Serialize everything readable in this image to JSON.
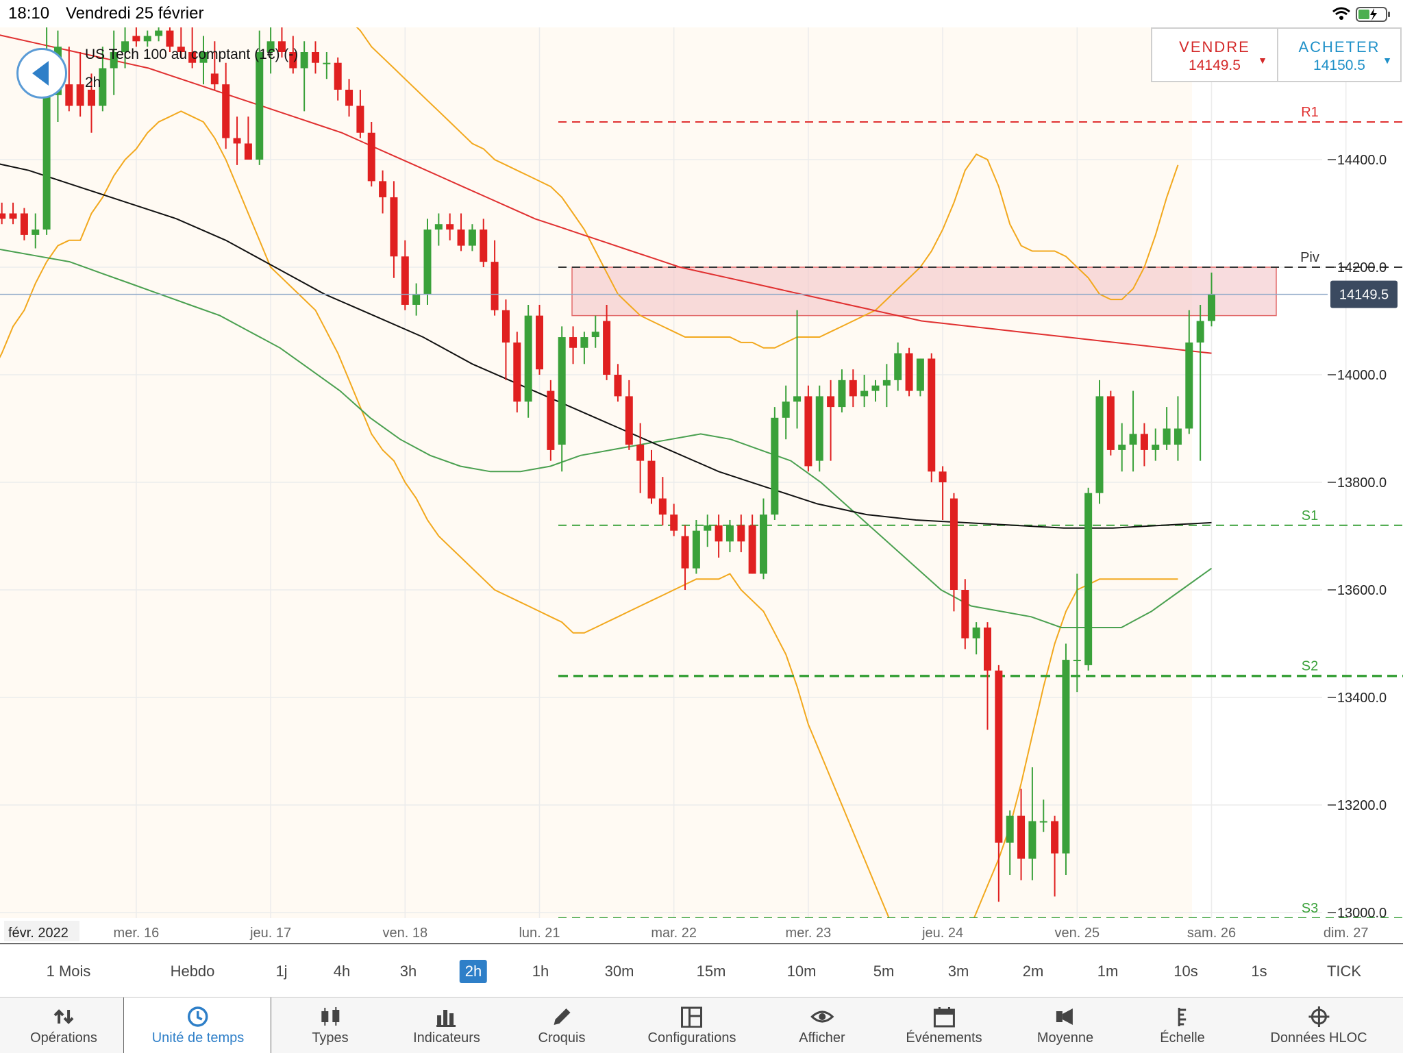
{
  "status_bar": {
    "time": "18:10",
    "date": "Vendredi 25 février"
  },
  "instrument": {
    "name": "US Tech 100 au comptant (1€) (-)",
    "timeframe": "2h"
  },
  "trade": {
    "sell_label": "VENDRE",
    "sell_price": "14149.5",
    "buy_label": "ACHETER",
    "buy_price": "14150.5"
  },
  "colors": {
    "up": "#3aa13a",
    "down": "#e02020",
    "accent": "#2e7fc8",
    "sell": "#d42a2a",
    "buy": "#1e90c8",
    "bollinger": "#f2a81d",
    "ma_red": "#e03030",
    "ma_green": "#4aa050",
    "ma_black": "#111111",
    "zone_fill": "#f4c4c8"
  },
  "chart_data": {
    "type": "candlestick",
    "instrument": "US Tech 100 au comptant (1€) (-)",
    "timeframe": "2h",
    "y_ticks": [
      "14400.0",
      "14200.0",
      "14000.0",
      "13800.0",
      "13600.0",
      "13400.0",
      "13200.0",
      "13000.0"
    ],
    "y_tick_values": [
      14400,
      14200,
      14000,
      13800,
      13600,
      13400,
      13200,
      13000
    ],
    "ylim": [
      12980,
      14650
    ],
    "last_price": "14149.5",
    "last_price_value": 14149.5,
    "date_labels": [
      "mer. 16",
      "jeu. 17",
      "ven. 18",
      "lun. 21",
      "mar. 22",
      "mer. 23",
      "jeu. 24",
      "ven. 25",
      "sam. 26",
      "dim. 27"
    ],
    "month_label": "févr. 2022",
    "levels": [
      {
        "name": "R1",
        "value": 14470,
        "color": "#e03030",
        "style": "dashed"
      },
      {
        "name": "Piv",
        "value": 14200,
        "color": "#333333",
        "style": "dashed"
      },
      {
        "name": "S1",
        "value": 13720,
        "color": "#3aa13a",
        "style": "dashed"
      },
      {
        "name": "S2",
        "value": 13440,
        "color": "#3aa13a",
        "style": "dashed-bold"
      },
      {
        "name": "S3",
        "value": 12990,
        "color": "#3aa13a",
        "style": "dashed"
      }
    ],
    "zone": {
      "from": 14110,
      "to": 14200
    },
    "x_axis": {
      "start_slot": 0,
      "slot_labels": [
        {
          "label": "mer. 16",
          "slot": 14
        },
        {
          "label": "jeu. 17",
          "slot": 26
        },
        {
          "label": "ven. 18",
          "slot": 38
        },
        {
          "label": "lun. 21",
          "slot": 50
        },
        {
          "label": "mar. 22",
          "slot": 62
        },
        {
          "label": "mer. 23",
          "slot": 74
        },
        {
          "label": "jeu. 24",
          "slot": 86
        },
        {
          "label": "ven. 25",
          "slot": 98
        },
        {
          "label": "sam. 26",
          "slot": 110
        },
        {
          "label": "dim. 27",
          "slot": 122
        }
      ]
    },
    "candles": [
      {
        "o": 14310,
        "h": 14320,
        "l": 14270,
        "c": 14280
      },
      {
        "o": 14300,
        "h": 14320,
        "l": 14280,
        "c": 14290
      },
      {
        "o": 14300,
        "h": 14320,
        "l": 14280,
        "c": 14290
      },
      {
        "o": 14300,
        "h": 14310,
        "l": 14250,
        "c": 14260
      },
      {
        "o": 14260,
        "h": 14300,
        "l": 14235,
        "c": 14270
      },
      {
        "o": 14270,
        "h": 14650,
        "l": 14260,
        "c": 14520
      },
      {
        "o": 14520,
        "h": 14640,
        "l": 14470,
        "c": 14610
      },
      {
        "o": 14540,
        "h": 14610,
        "l": 14490,
        "c": 14500
      },
      {
        "o": 14540,
        "h": 14600,
        "l": 14480,
        "c": 14500
      },
      {
        "o": 14530,
        "h": 14560,
        "l": 14450,
        "c": 14500
      },
      {
        "o": 14500,
        "h": 14610,
        "l": 14490,
        "c": 14570
      },
      {
        "o": 14570,
        "h": 14640,
        "l": 14520,
        "c": 14600
      },
      {
        "o": 14600,
        "h": 14650,
        "l": 14570,
        "c": 14620
      },
      {
        "o": 14630,
        "h": 14650,
        "l": 14610,
        "c": 14620
      },
      {
        "o": 14620,
        "h": 14640,
        "l": 14610,
        "c": 14630
      },
      {
        "o": 14630,
        "h": 14650,
        "l": 14620,
        "c": 14640
      },
      {
        "o": 14640,
        "h": 14650,
        "l": 14600,
        "c": 14610
      },
      {
        "o": 14610,
        "h": 14650,
        "l": 14590,
        "c": 14600
      },
      {
        "o": 14600,
        "h": 14650,
        "l": 14570,
        "c": 14580
      },
      {
        "o": 14580,
        "h": 14630,
        "l": 14540,
        "c": 14600
      },
      {
        "o": 14560,
        "h": 14620,
        "l": 14530,
        "c": 14540
      },
      {
        "o": 14540,
        "h": 14580,
        "l": 14420,
        "c": 14440
      },
      {
        "o": 14440,
        "h": 14480,
        "l": 14390,
        "c": 14430
      },
      {
        "o": 14430,
        "h": 14480,
        "l": 14400,
        "c": 14400
      },
      {
        "o": 14400,
        "h": 14640,
        "l": 14390,
        "c": 14600
      },
      {
        "o": 14600,
        "h": 14650,
        "l": 14560,
        "c": 14620
      },
      {
        "o": 14620,
        "h": 14650,
        "l": 14590,
        "c": 14600
      },
      {
        "o": 14600,
        "h": 14630,
        "l": 14560,
        "c": 14570
      },
      {
        "o": 14570,
        "h": 14620,
        "l": 14490,
        "c": 14600
      },
      {
        "o": 14600,
        "h": 14620,
        "l": 14560,
        "c": 14580
      },
      {
        "o": 14580,
        "h": 14600,
        "l": 14550,
        "c": 14580
      },
      {
        "o": 14580,
        "h": 14590,
        "l": 14510,
        "c": 14530
      },
      {
        "o": 14530,
        "h": 14550,
        "l": 14480,
        "c": 14500
      },
      {
        "o": 14500,
        "h": 14530,
        "l": 14440,
        "c": 14450
      },
      {
        "o": 14450,
        "h": 14470,
        "l": 14350,
        "c": 14360
      },
      {
        "o": 14360,
        "h": 14380,
        "l": 14300,
        "c": 14330
      },
      {
        "o": 14330,
        "h": 14360,
        "l": 14180,
        "c": 14220
      },
      {
        "o": 14220,
        "h": 14250,
        "l": 14120,
        "c": 14130
      },
      {
        "o": 14130,
        "h": 14170,
        "l": 14110,
        "c": 14150
      },
      {
        "o": 14150,
        "h": 14290,
        "l": 14130,
        "c": 14270
      },
      {
        "o": 14270,
        "h": 14300,
        "l": 14240,
        "c": 14280
      },
      {
        "o": 14280,
        "h": 14300,
        "l": 14250,
        "c": 14270
      },
      {
        "o": 14270,
        "h": 14300,
        "l": 14230,
        "c": 14240
      },
      {
        "o": 14240,
        "h": 14280,
        "l": 14230,
        "c": 14270
      },
      {
        "o": 14270,
        "h": 14290,
        "l": 14200,
        "c": 14210
      },
      {
        "o": 14210,
        "h": 14250,
        "l": 14110,
        "c": 14120
      },
      {
        "o": 14120,
        "h": 14140,
        "l": 13990,
        "c": 14060
      },
      {
        "o": 14060,
        "h": 14080,
        "l": 13930,
        "c": 13950
      },
      {
        "o": 13950,
        "h": 14130,
        "l": 13920,
        "c": 14110
      },
      {
        "o": 14110,
        "h": 14130,
        "l": 14000,
        "c": 14010
      },
      {
        "o": 13970,
        "h": 13990,
        "l": 13840,
        "c": 13860
      },
      {
        "o": 13870,
        "h": 14090,
        "l": 13820,
        "c": 14070
      },
      {
        "o": 14070,
        "h": 14090,
        "l": 14020,
        "c": 14050
      },
      {
        "o": 14050,
        "h": 14080,
        "l": 14020,
        "c": 14070
      },
      {
        "o": 14070,
        "h": 14110,
        "l": 14050,
        "c": 14080
      },
      {
        "o": 14100,
        "h": 14130,
        "l": 13990,
        "c": 14000
      },
      {
        "o": 14000,
        "h": 14020,
        "l": 13950,
        "c": 13960
      },
      {
        "o": 13960,
        "h": 13990,
        "l": 13860,
        "c": 13870
      },
      {
        "o": 13870,
        "h": 13910,
        "l": 13780,
        "c": 13840
      },
      {
        "o": 13840,
        "h": 13860,
        "l": 13760,
        "c": 13770
      },
      {
        "o": 13770,
        "h": 13810,
        "l": 13720,
        "c": 13740
      },
      {
        "o": 13740,
        "h": 13760,
        "l": 13700,
        "c": 13710
      },
      {
        "o": 13700,
        "h": 13720,
        "l": 13600,
        "c": 13640
      },
      {
        "o": 13640,
        "h": 13730,
        "l": 13630,
        "c": 13710
      },
      {
        "o": 13710,
        "h": 13740,
        "l": 13680,
        "c": 13720
      },
      {
        "o": 13720,
        "h": 13740,
        "l": 13660,
        "c": 13690
      },
      {
        "o": 13690,
        "h": 13730,
        "l": 13670,
        "c": 13720
      },
      {
        "o": 13720,
        "h": 13740,
        "l": 13670,
        "c": 13690
      },
      {
        "o": 13720,
        "h": 13740,
        "l": 13630,
        "c": 13630
      },
      {
        "o": 13630,
        "h": 13770,
        "l": 13620,
        "c": 13740
      },
      {
        "o": 13740,
        "h": 13940,
        "l": 13730,
        "c": 13920
      },
      {
        "o": 13920,
        "h": 13980,
        "l": 13880,
        "c": 13950
      },
      {
        "o": 13950,
        "h": 14120,
        "l": 13900,
        "c": 13960
      },
      {
        "o": 13960,
        "h": 13980,
        "l": 13820,
        "c": 13830
      },
      {
        "o": 13840,
        "h": 13980,
        "l": 13820,
        "c": 13960
      },
      {
        "o": 13960,
        "h": 13990,
        "l": 13840,
        "c": 13940
      },
      {
        "o": 13940,
        "h": 14010,
        "l": 13930,
        "c": 13990
      },
      {
        "o": 13990,
        "h": 14010,
        "l": 13940,
        "c": 13960
      },
      {
        "o": 13960,
        "h": 14000,
        "l": 13940,
        "c": 13970
      },
      {
        "o": 13970,
        "h": 13990,
        "l": 13950,
        "c": 13980
      },
      {
        "o": 13980,
        "h": 14020,
        "l": 13940,
        "c": 13990
      },
      {
        "o": 13990,
        "h": 14060,
        "l": 13970,
        "c": 14040
      },
      {
        "o": 14040,
        "h": 14050,
        "l": 13960,
        "c": 13970
      },
      {
        "o": 13970,
        "h": 14030,
        "l": 13960,
        "c": 14030
      },
      {
        "o": 14030,
        "h": 14040,
        "l": 13800,
        "c": 13820
      },
      {
        "o": 13820,
        "h": 13830,
        "l": 13730,
        "c": 13800
      },
      {
        "o": 13770,
        "h": 13780,
        "l": 13560,
        "c": 13600
      },
      {
        "o": 13600,
        "h": 13620,
        "l": 13490,
        "c": 13510
      },
      {
        "o": 13510,
        "h": 13540,
        "l": 13480,
        "c": 13530
      },
      {
        "o": 13530,
        "h": 13540,
        "l": 13340,
        "c": 13450
      },
      {
        "o": 13450,
        "h": 13460,
        "l": 13020,
        "c": 13130
      },
      {
        "o": 13130,
        "h": 13190,
        "l": 13070,
        "c": 13180
      },
      {
        "o": 13180,
        "h": 13230,
        "l": 13060,
        "c": 13100
      },
      {
        "o": 13100,
        "h": 13270,
        "l": 13060,
        "c": 13170
      },
      {
        "o": 13170,
        "h": 13210,
        "l": 13150,
        "c": 13170
      },
      {
        "o": 13170,
        "h": 13180,
        "l": 13030,
        "c": 13110
      },
      {
        "o": 13110,
        "h": 13500,
        "l": 13070,
        "c": 13470
      },
      {
        "o": 13470,
        "h": 13630,
        "l": 13410,
        "c": 13470
      },
      {
        "o": 13460,
        "h": 13790,
        "l": 13450,
        "c": 13780
      },
      {
        "o": 13780,
        "h": 13990,
        "l": 13760,
        "c": 13960
      },
      {
        "o": 13960,
        "h": 13970,
        "l": 13850,
        "c": 13860
      },
      {
        "o": 13860,
        "h": 13910,
        "l": 13820,
        "c": 13870
      },
      {
        "o": 13870,
        "h": 13970,
        "l": 13820,
        "c": 13890
      },
      {
        "o": 13890,
        "h": 13910,
        "l": 13830,
        "c": 13860
      },
      {
        "o": 13860,
        "h": 13900,
        "l": 13840,
        "c": 13870
      },
      {
        "o": 13870,
        "h": 13940,
        "l": 13860,
        "c": 13900
      },
      {
        "o": 13870,
        "h": 13960,
        "l": 13840,
        "c": 13900
      },
      {
        "o": 13900,
        "h": 14120,
        "l": 13890,
        "c": 14060
      },
      {
        "o": 14060,
        "h": 14130,
        "l": 13840,
        "c": 14100
      },
      {
        "o": 14100,
        "h": 14190,
        "l": 14090,
        "c": 14149.5
      }
    ],
    "bollinger_upper": [
      14800,
      14800,
      14790,
      14760,
      14730,
      14720,
      14700,
      14680,
      14690,
      14690,
      14700,
      14720,
      14740,
      14750,
      14760,
      14780,
      14790,
      14800,
      14800,
      14790,
      14780,
      14770,
      14760,
      14740,
      14740,
      14740,
      14740,
      14740,
      14740,
      14740,
      14720,
      14700,
      14680,
      14660,
      14640,
      14610,
      14590,
      14570,
      14550,
      14530,
      14510,
      14490,
      14470,
      14450,
      14430,
      14420,
      14400,
      14390,
      14380,
      14370,
      14360,
      14350,
      14330,
      14300,
      14270,
      14230,
      14190,
      14150,
      14130,
      14110,
      14100,
      14090,
      14080,
      14070,
      14070,
      14070,
      14070,
      14070,
      14060,
      14060,
      14050,
      14050,
      14060,
      14070,
      14070,
      14070,
      14080,
      14090,
      14100,
      14110,
      14120,
      14140,
      14160,
      14180,
      14200,
      14230,
      14270,
      14320,
      14380,
      14410,
      14400,
      14350,
      14280,
      14240,
      14230,
      14230,
      14230,
      14220,
      14200,
      14180,
      14150,
      14140,
      14140,
      14160,
      14200,
      14260,
      14330,
      14390
    ],
    "bollinger_lower": [
      13990,
      14000,
      14040,
      14090,
      14120,
      14170,
      14210,
      14240,
      14250,
      14250,
      14300,
      14330,
      14370,
      14400,
      14420,
      14450,
      14470,
      14480,
      14490,
      14480,
      14470,
      14440,
      14400,
      14350,
      14300,
      14250,
      14200,
      14180,
      14160,
      14140,
      14120,
      14080,
      14040,
      13990,
      13940,
      13890,
      13860,
      13840,
      13800,
      13770,
      13730,
      13700,
      13680,
      13660,
      13640,
      13620,
      13600,
      13590,
      13580,
      13570,
      13560,
      13550,
      13540,
      13520,
      13520,
      13530,
      13540,
      13550,
      13560,
      13570,
      13580,
      13590,
      13600,
      13610,
      13620,
      13620,
      13620,
      13630,
      13600,
      13580,
      13560,
      13520,
      13480,
      13420,
      13350,
      13300,
      13250,
      13200,
      13150,
      13100,
      13050,
      13000,
      12950,
      12910,
      12880,
      12870,
      12880,
      12900,
      12950,
      13000,
      13050,
      13100,
      13160,
      13240,
      13330,
      13420,
      13500,
      13560,
      13600,
      13610,
      13620,
      13620,
      13620,
      13620,
      13620,
      13620,
      13620,
      13620
    ],
    "ma_red": [
      14640,
      14630,
      14620,
      14610,
      14600,
      14590,
      14580,
      14570,
      14555,
      14540,
      14525,
      14510,
      14495,
      14480,
      14465,
      14450,
      14430,
      14410,
      14390,
      14370,
      14350,
      14330,
      14310,
      14290,
      14275,
      14260,
      14245,
      14230,
      14215,
      14200,
      14190,
      14180,
      14170,
      14160,
      14150,
      14140,
      14130,
      14120,
      14110,
      14100,
      14095,
      14090,
      14085,
      14080,
      14075,
      14070,
      14065,
      14060,
      14055,
      14050,
      14045,
      14040
    ],
    "ma_green": [
      14240,
      14230,
      14220,
      14210,
      14190,
      14170,
      14150,
      14130,
      14110,
      14080,
      14050,
      14010,
      13970,
      13920,
      13880,
      13850,
      13830,
      13820,
      13820,
      13830,
      13850,
      13860,
      13870,
      13880,
      13890,
      13880,
      13860,
      13840,
      13800,
      13750,
      13700,
      13650,
      13600,
      13570,
      13560,
      13550,
      13530,
      13530,
      13530,
      13560,
      13600,
      13640
    ],
    "ma_black": [
      14400,
      14380,
      14350,
      14320,
      14290,
      14250,
      14200,
      14150,
      14110,
      14070,
      14020,
      13980,
      13940,
      13900,
      13860,
      13820,
      13790,
      13760,
      13740,
      13730,
      13725,
      13720,
      13715,
      13715,
      13720,
      13725
    ]
  },
  "timeframes": [
    "1 Mois",
    "Hebdo",
    "1j",
    "4h",
    "3h",
    "2h",
    "1h",
    "30m",
    "15m",
    "10m",
    "5m",
    "3m",
    "2m",
    "1m",
    "10s",
    "1s",
    "TICK"
  ],
  "active_timeframe": "2h",
  "toolbar": {
    "items": [
      {
        "label": "Opérations",
        "icon": "up-down-arrows-icon"
      },
      {
        "label": "Unité de temps",
        "icon": "clock-icon"
      },
      {
        "label": "Types",
        "icon": "candles-icon"
      },
      {
        "label": "Indicateurs",
        "icon": "bar-chart-icon"
      },
      {
        "label": "Croquis",
        "icon": "pencil-icon"
      },
      {
        "label": "Configurations",
        "icon": "layout-icon"
      },
      {
        "label": "Afficher",
        "icon": "eye-icon"
      },
      {
        "label": "Événements",
        "icon": "calendar-icon"
      },
      {
        "label": "Moyenne",
        "icon": "speaker-icon"
      },
      {
        "label": "Échelle",
        "icon": "scale-icon"
      },
      {
        "label": "Données HLOC",
        "icon": "crosshair-icon"
      }
    ],
    "active": "Unité de temps"
  }
}
